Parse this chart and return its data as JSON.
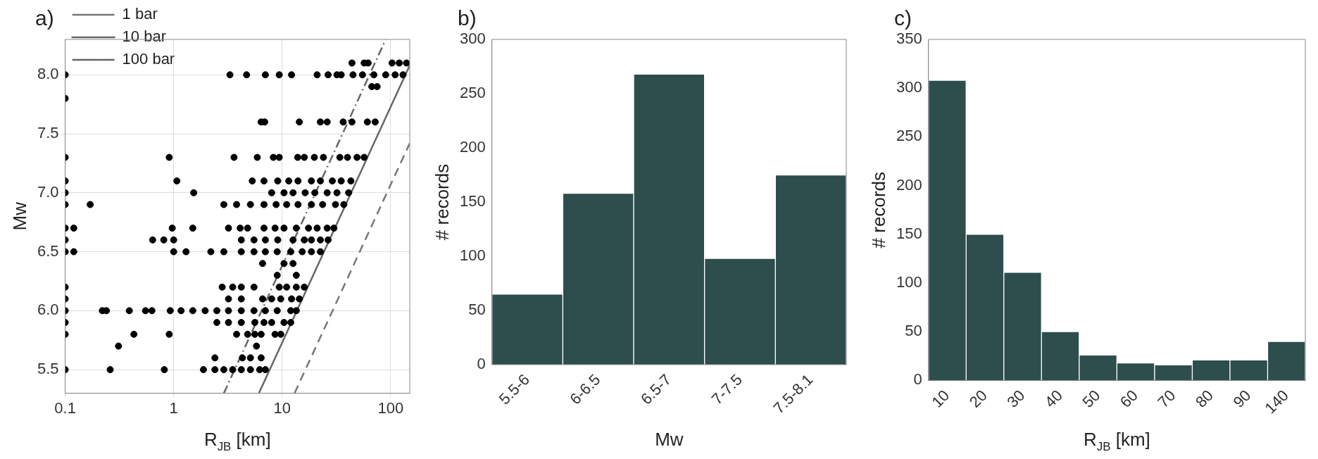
{
  "chart_data": [
    {
      "type": "scatter",
      "title": "a)",
      "xlabel": "R$_{JB}$ [km]",
      "ylabel": "Mw",
      "log": "x",
      "xlim": [
        0.1,
        150
      ],
      "xticks": [
        0.1,
        1,
        10,
        100
      ],
      "ylim": [
        5.3,
        8.3
      ],
      "yticks": [
        5.5,
        {
          "value": 6,
          "label": "6.0"
        },
        6.5,
        {
          "value": 7,
          "label": "7.0"
        },
        7.5,
        {
          "value": 8,
          "label": "8.0"
        }
      ],
      "grid": true,
      "legend": "top left",
      "series": [
        {
          "color": "#000000",
          "marker": "circle",
          "x": [
            44,
            57,
            62,
            103,
            120,
            140,
            0.1,
            3.3,
            4.7,
            7.0,
            9.4,
            12.2,
            21,
            26.5,
            32,
            35,
            45,
            55,
            70,
            90,
            110,
            130,
            67,
            75,
            0.1,
            6.4,
            6.9,
            14.4,
            22.5,
            26,
            36.5,
            44,
            61,
            72,
            0.1,
            0.91,
            3.6,
            5.9,
            8.3,
            9.4,
            13.9,
            16,
            19.8,
            24,
            34,
            40,
            49,
            57,
            0.1,
            1.07,
            5.3,
            6.8,
            9.1,
            11.5,
            14,
            18.6,
            22.5,
            29,
            35,
            43,
            0.1,
            1.53,
            8,
            10.4,
            12.6,
            16.3,
            20,
            26,
            32,
            41,
            0.1,
            0.17,
            2.9,
            3.8,
            5.1,
            6.8,
            8.8,
            11,
            14,
            18.6,
            23.6,
            31,
            37,
            0.1,
            0.12,
            0.97,
            1.5,
            3.2,
            4.1,
            4.8,
            6.8,
            8.6,
            10.4,
            13.5,
            17.5,
            21,
            26,
            30,
            0.1,
            0.64,
            0.81,
            1,
            4.2,
            5.5,
            7,
            9.1,
            12.6,
            16,
            18.6,
            22.5,
            26.5,
            0.1,
            0.12,
            1,
            1.3,
            2.2,
            2.9,
            4.2,
            5.5,
            7,
            9,
            12,
            15.3,
            18.6,
            22.5,
            6.6,
            10.4,
            12.6,
            9,
            13.5,
            0.1,
            2.8,
            3.5,
            4.2,
            5.5,
            9.4,
            11,
            13.5,
            16,
            0.1,
            3.2,
            4.2,
            6.6,
            8,
            9.7,
            12.2,
            14.4,
            0.1,
            0.22,
            0.24,
            0.39,
            0.55,
            0.63,
            0.93,
            1.17,
            1.5,
            1.95,
            2.5,
            3.2,
            4.2,
            5.5,
            7,
            9,
            12,
            13.5,
            0.1,
            2.5,
            3.2,
            4.2,
            5.6,
            6.8,
            8,
            10.4,
            12,
            0.1,
            0.43,
            0.91,
            3.8,
            4.8,
            5.6,
            6.4,
            8.6,
            9.7,
            0.31,
            5.8,
            2.4,
            4.3,
            5.1,
            6.4,
            0.1,
            0.26,
            0.82,
            1.88,
            2.4,
            2.9,
            3.5,
            4.2,
            5.1,
            6.2,
            7
          ],
          "values": [
            8.1,
            8.1,
            8.1,
            8.1,
            8.1,
            8.1,
            8,
            8,
            8,
            8,
            8,
            8,
            8,
            8,
            8,
            8,
            8,
            8,
            8,
            8,
            8,
            8,
            7.9,
            7.9,
            7.8,
            7.6,
            7.6,
            7.6,
            7.6,
            7.6,
            7.6,
            7.6,
            7.6,
            7.6,
            7.3,
            7.3,
            7.3,
            7.3,
            7.3,
            7.3,
            7.3,
            7.3,
            7.3,
            7.3,
            7.3,
            7.3,
            7.3,
            7.3,
            7.1,
            7.1,
            7.1,
            7.1,
            7.1,
            7.1,
            7.1,
            7.1,
            7.1,
            7.1,
            7.1,
            7.1,
            7,
            7,
            7,
            7,
            7,
            7,
            7,
            7,
            7,
            7,
            6.9,
            6.9,
            6.9,
            6.9,
            6.9,
            6.9,
            6.9,
            6.9,
            6.9,
            6.9,
            6.9,
            6.9,
            6.9,
            6.7,
            6.7,
            6.7,
            6.7,
            6.7,
            6.7,
            6.7,
            6.7,
            6.7,
            6.7,
            6.7,
            6.7,
            6.7,
            6.7,
            6.7,
            6.6,
            6.6,
            6.6,
            6.6,
            6.6,
            6.6,
            6.6,
            6.6,
            6.6,
            6.6,
            6.6,
            6.6,
            6.6,
            6.5,
            6.5,
            6.5,
            6.5,
            6.5,
            6.5,
            6.5,
            6.5,
            6.5,
            6.5,
            6.5,
            6.5,
            6.5,
            6.5,
            6.4,
            6.4,
            6.4,
            6.3,
            6.3,
            6.2,
            6.2,
            6.2,
            6.2,
            6.2,
            6.2,
            6.2,
            6.2,
            6.2,
            6.1,
            6.1,
            6.1,
            6.1,
            6.1,
            6.1,
            6.1,
            6.1,
            6,
            6,
            6,
            6,
            6,
            6,
            6,
            6,
            6,
            6,
            6,
            6,
            6,
            6,
            6,
            6,
            6,
            6,
            5.9,
            5.9,
            5.9,
            5.9,
            5.9,
            5.9,
            5.9,
            5.9,
            5.9,
            5.8,
            5.8,
            5.8,
            5.8,
            5.8,
            5.8,
            5.8,
            5.8,
            5.8,
            5.7,
            5.7,
            5.6,
            5.6,
            5.6,
            5.6,
            5.5,
            5.5,
            5.5,
            5.5,
            5.5,
            5.5,
            5.5,
            5.5,
            5.5,
            5.5,
            5.5
          ]
        },
        {
          "name": "1 bar",
          "type": "line",
          "color": "#777777",
          "line_style": "dashed",
          "marker": "none",
          "x": [
            13,
            150
          ],
          "values": [
            5.3,
            7.42
          ]
        },
        {
          "name": "10 bar",
          "type": "line",
          "color": "#666666",
          "line_style": "solid",
          "marker": "none",
          "x": [
            6.1,
            150
          ],
          "values": [
            5.3,
            8.08
          ]
        },
        {
          "name": "100 bar",
          "type": "line",
          "color": "#666666",
          "line_style": "dashdot",
          "marker": "none",
          "x": [
            2.9,
            90
          ],
          "values": [
            5.3,
            8.3
          ]
        }
      ]
    },
    {
      "type": "bar",
      "title": "b)",
      "xlabel": "Mw",
      "ylabel": "# records",
      "categories": [
        "5.5-6",
        "6-6.5",
        "6.5-7",
        "7-7.5",
        "7.5-8.1"
      ],
      "values": [
        65,
        158,
        268,
        98,
        175
      ],
      "color": "#2e4d4d",
      "ylim": [
        0,
        300
      ],
      "yticks": [
        0,
        50,
        100,
        150,
        200,
        250,
        300
      ]
    },
    {
      "type": "bar",
      "title": "c)",
      "xlabel": "R$_{JB}$ [km]",
      "ylabel": "# records",
      "categories": [
        "10",
        "20",
        "30",
        "40",
        "50",
        "60",
        "70",
        "80",
        "90",
        "140"
      ],
      "values": [
        308,
        150,
        111,
        50,
        26,
        18,
        16,
        21,
        21,
        40
      ],
      "color": "#2e4d4d",
      "ylim": [
        0,
        350
      ],
      "yticks": [
        0,
        50,
        100,
        150,
        200,
        250,
        300,
        350
      ]
    }
  ]
}
